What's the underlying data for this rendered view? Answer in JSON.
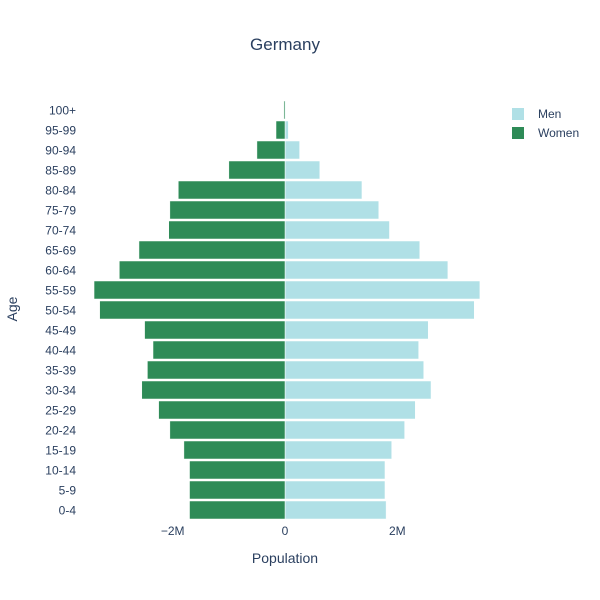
{
  "chart_data": {
    "type": "bar",
    "orientation": "horizontal",
    "barmode": "relative",
    "title": "Germany",
    "xlabel": "Population",
    "ylabel": "Age",
    "xlim": [
      -3650000,
      3650000
    ],
    "xticks": [
      -2000000,
      0,
      2000000
    ],
    "xtick_labels": [
      "−2M",
      "0",
      "2M"
    ],
    "categories": [
      "0-4",
      "5-9",
      "10-14",
      "15-19",
      "20-24",
      "25-29",
      "30-34",
      "35-39",
      "40-44",
      "45-49",
      "50-54",
      "55-59",
      "60-64",
      "65-69",
      "70-74",
      "75-79",
      "80-84",
      "85-89",
      "90-94",
      "95-99",
      "100+"
    ],
    "legend_position": "top-right",
    "series": [
      {
        "name": "Men",
        "color": "#b0e0e6",
        "values": [
          1800000,
          1780000,
          1780000,
          1900000,
          2130000,
          2320000,
          2600000,
          2470000,
          2380000,
          2550000,
          3370000,
          3470000,
          2900000,
          2400000,
          1860000,
          1670000,
          1370000,
          620000,
          260000,
          60000,
          10000
        ]
      },
      {
        "name": "Women",
        "color": "#2e8b57",
        "values": [
          -1700000,
          -1700000,
          -1700000,
          -1800000,
          -2050000,
          -2250000,
          -2550000,
          -2450000,
          -2350000,
          -2500000,
          -3300000,
          -3400000,
          -2950000,
          -2600000,
          -2070000,
          -2050000,
          -1900000,
          -1000000,
          -500000,
          -160000,
          -20000
        ]
      }
    ]
  }
}
